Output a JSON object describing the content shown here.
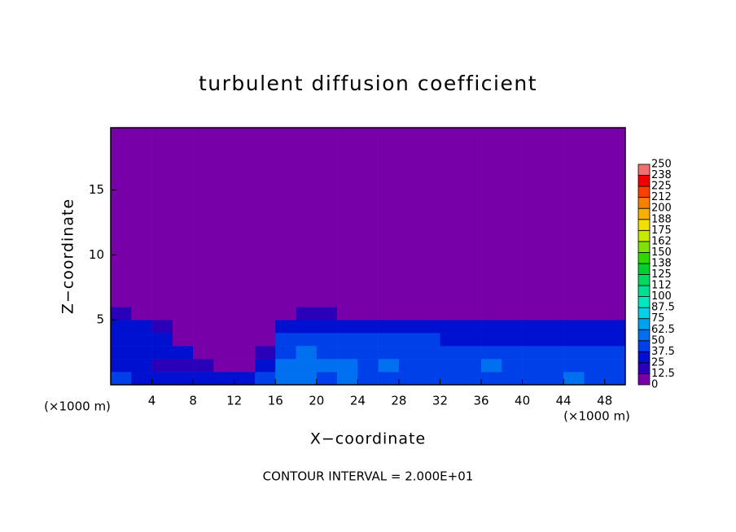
{
  "chart_data": {
    "type": "heatmap",
    "title": "turbulent diffusion coefficient",
    "xlabel": "X−coordinate",
    "ylabel": "Z−coordinate",
    "x_unit_label": "(×1000 m)",
    "y_unit_label": "(×1000 m)",
    "footer": "CONTOUR INTERVAL = 2.000E+01",
    "xlim": [
      0,
      50
    ],
    "ylim": [
      0,
      19.8
    ],
    "xticks": [
      4,
      8,
      12,
      16,
      20,
      24,
      28,
      32,
      36,
      40,
      44,
      48
    ],
    "yticks": [
      5,
      10,
      15
    ],
    "x_edges": [
      0,
      2,
      4,
      6,
      8,
      10,
      12,
      14,
      16,
      18,
      20,
      22,
      24,
      26,
      28,
      30,
      32,
      34,
      36,
      38,
      40,
      42,
      44,
      46,
      48,
      50
    ],
    "z_edges": [
      0,
      1,
      2,
      3,
      4,
      5,
      6,
      19.8
    ],
    "values": [
      [
        40,
        35,
        30,
        30,
        30,
        30,
        35,
        45,
        55,
        50,
        45,
        50,
        45,
        45,
        40,
        40,
        40,
        40,
        45,
        40,
        40,
        45,
        50,
        40,
        40
      ],
      [
        35,
        35,
        20,
        20,
        15,
        10,
        10,
        30,
        50,
        55,
        50,
        50,
        45,
        50,
        45,
        40,
        40,
        45,
        50,
        45,
        40,
        40,
        45,
        40,
        40
      ],
      [
        35,
        35,
        25,
        25,
        10,
        5,
        5,
        20,
        45,
        50,
        45,
        45,
        45,
        45,
        40,
        40,
        40,
        45,
        40,
        40,
        40,
        40,
        40,
        40,
        40
      ],
      [
        30,
        30,
        30,
        10,
        5,
        5,
        5,
        10,
        40,
        45,
        40,
        40,
        40,
        40,
        40,
        40,
        35,
        35,
        35,
        35,
        35,
        35,
        35,
        35,
        35
      ],
      [
        30,
        25,
        15,
        5,
        5,
        5,
        5,
        5,
        30,
        35,
        35,
        30,
        35,
        35,
        35,
        35,
        30,
        30,
        30,
        30,
        30,
        30,
        30,
        30,
        30
      ],
      [
        20,
        10,
        5,
        5,
        5,
        5,
        5,
        5,
        5,
        15,
        20,
        10,
        10,
        5,
        5,
        5,
        5,
        5,
        5,
        5,
        5,
        5,
        5,
        10,
        10
      ],
      [
        0,
        0,
        0,
        0,
        0,
        0,
        0,
        0,
        0,
        0,
        0,
        0,
        0,
        0,
        0,
        0,
        0,
        0,
        0,
        0,
        0,
        0,
        0,
        0,
        0
      ]
    ],
    "colorbar_ticks": [
      0,
      12.5,
      25,
      37.5,
      50,
      62.5,
      75,
      87.5,
      100,
      112,
      125,
      138,
      150,
      162,
      175,
      188,
      200,
      212,
      225,
      238,
      250
    ],
    "colors": [
      "#7800a8",
      "#2a00b8",
      "#0010d0",
      "#0040e8",
      "#0070f0",
      "#00a0f0",
      "#00d0e8",
      "#00e8c0",
      "#00e090",
      "#00d860",
      "#00d030",
      "#30d800",
      "#80e000",
      "#c8e800",
      "#f0e000",
      "#f8b000",
      "#f88000",
      "#f84000",
      "#f00000",
      "#f07070"
    ]
  }
}
